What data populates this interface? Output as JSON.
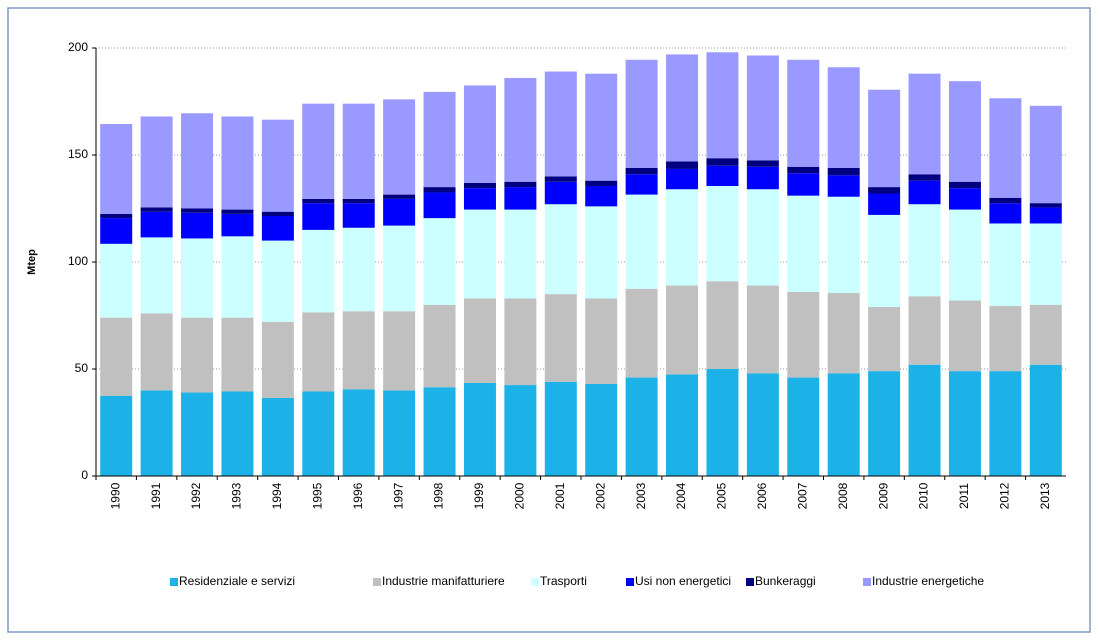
{
  "chart_data": {
    "type": "stacked-bar",
    "y_label": "Mtep",
    "categories": [
      "1990",
      "1991",
      "1992",
      "1993",
      "1994",
      "1995",
      "1996",
      "1997",
      "1998",
      "1999",
      "2000",
      "2001",
      "2002",
      "2003",
      "2004",
      "2005",
      "2006",
      "2007",
      "2008",
      "2009",
      "2010",
      "2011",
      "2012",
      "2013"
    ],
    "ylim": [
      0,
      200
    ],
    "yticks": [
      0,
      50,
      100,
      150,
      200
    ],
    "grid": true,
    "legend": "bottom",
    "series": [
      {
        "name": "Residenziale e servizi",
        "color": "#1cb2e8",
        "values": [
          37.5,
          40,
          39,
          39.5,
          36.5,
          39.5,
          40.5,
          40,
          41.5,
          43.5,
          42.5,
          44,
          43,
          46,
          47.5,
          50,
          48,
          46,
          48,
          49,
          52,
          49,
          49,
          52
        ]
      },
      {
        "name": "Industrie manifatturiere",
        "color": "#c0c0c0",
        "values": [
          36.5,
          36,
          35,
          34.5,
          35.5,
          37,
          36.5,
          37,
          38.5,
          39.5,
          40.5,
          41,
          40,
          41.5,
          41.5,
          41,
          41,
          40,
          37.5,
          30,
          32,
          33,
          30.5,
          28
        ]
      },
      {
        "name": "Trasporti",
        "color": "#ccffff",
        "values": [
          34.5,
          35.5,
          37,
          38,
          38,
          38.5,
          39,
          40,
          40.5,
          41.5,
          41.5,
          42,
          43,
          44,
          45,
          44.5,
          45,
          45,
          45,
          43,
          43,
          42.5,
          38.5,
          38
        ]
      },
      {
        "name": "Usi non energetici",
        "color": "#0000ff",
        "values": [
          12,
          12,
          12,
          10.5,
          11.5,
          12.5,
          11.5,
          12.5,
          12,
          10,
          10.5,
          10.5,
          9.5,
          9.5,
          9.5,
          9.5,
          10.5,
          10.5,
          10,
          10,
          11,
          10,
          9.5,
          7.5
        ]
      },
      {
        "name": "Bunkeraggi",
        "color": "#000080",
        "values": [
          2,
          2,
          2,
          2,
          2,
          2,
          2,
          2,
          2.5,
          2.5,
          2.5,
          2.5,
          2.5,
          3,
          3.5,
          3.5,
          3,
          3,
          3.5,
          3,
          3,
          3,
          2.5,
          2
        ]
      },
      {
        "name": "Industrie energetiche",
        "color": "#9999ff",
        "values": [
          42,
          42.5,
          44.5,
          43.5,
          43,
          44.5,
          44.5,
          44.5,
          44.5,
          45.5,
          48.5,
          49,
          50,
          50.5,
          50,
          49.5,
          49,
          50,
          47,
          45.5,
          47,
          47,
          46.5,
          45.5
        ]
      }
    ]
  }
}
